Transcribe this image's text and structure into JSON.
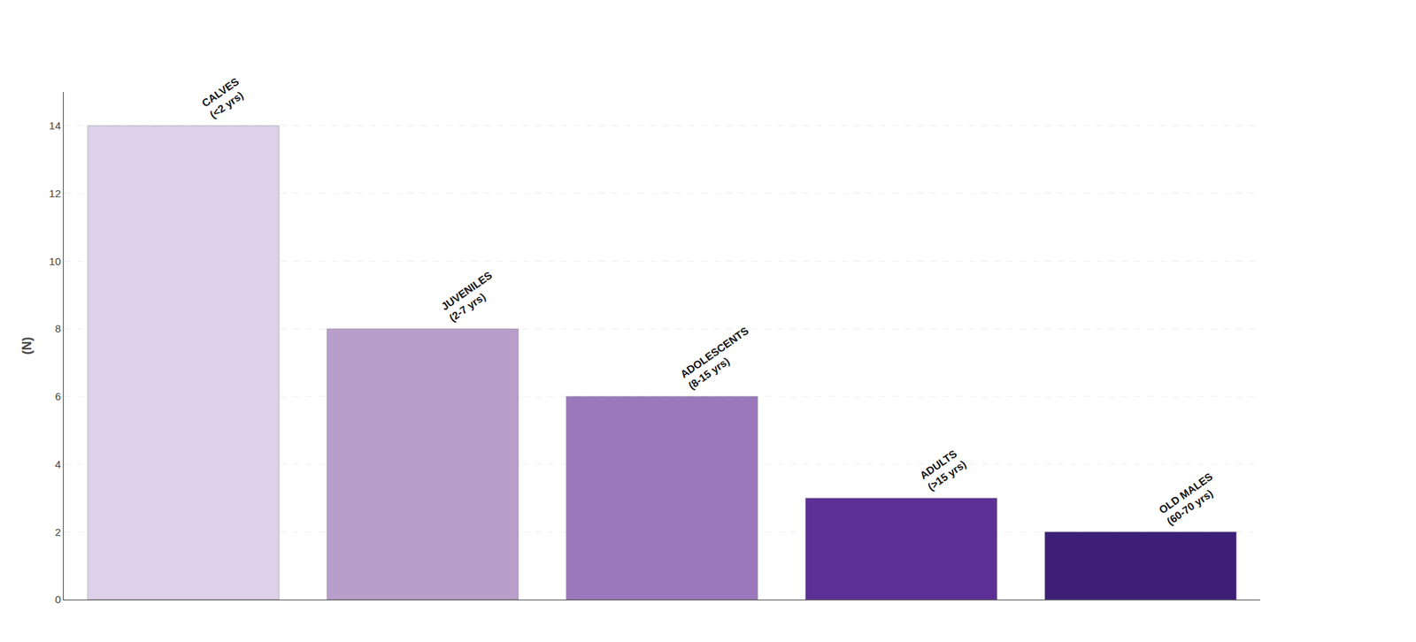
{
  "chart_data": {
    "type": "bar",
    "categories": [
      "CALVES\n(<2 yrs)",
      "JUVENILES\n(2-7 yrs)",
      "ADOLESCENTS\n(8-15 yrs)",
      "ADULTS\n(>15 yrs)",
      "OLD MALES\n(60-70 yrs)"
    ],
    "values": [
      14,
      8,
      6,
      3,
      2
    ],
    "colors": [
      "#ddd0e8",
      "#b89eca",
      "#9b78bc",
      "#5c3096",
      "#3d1f78"
    ],
    "ylabel": "(N)",
    "ylim": [
      0,
      15
    ],
    "yticks": [
      0,
      2,
      4,
      6,
      8,
      10,
      12,
      14
    ],
    "grid": true,
    "tick_labels": "y"
  }
}
